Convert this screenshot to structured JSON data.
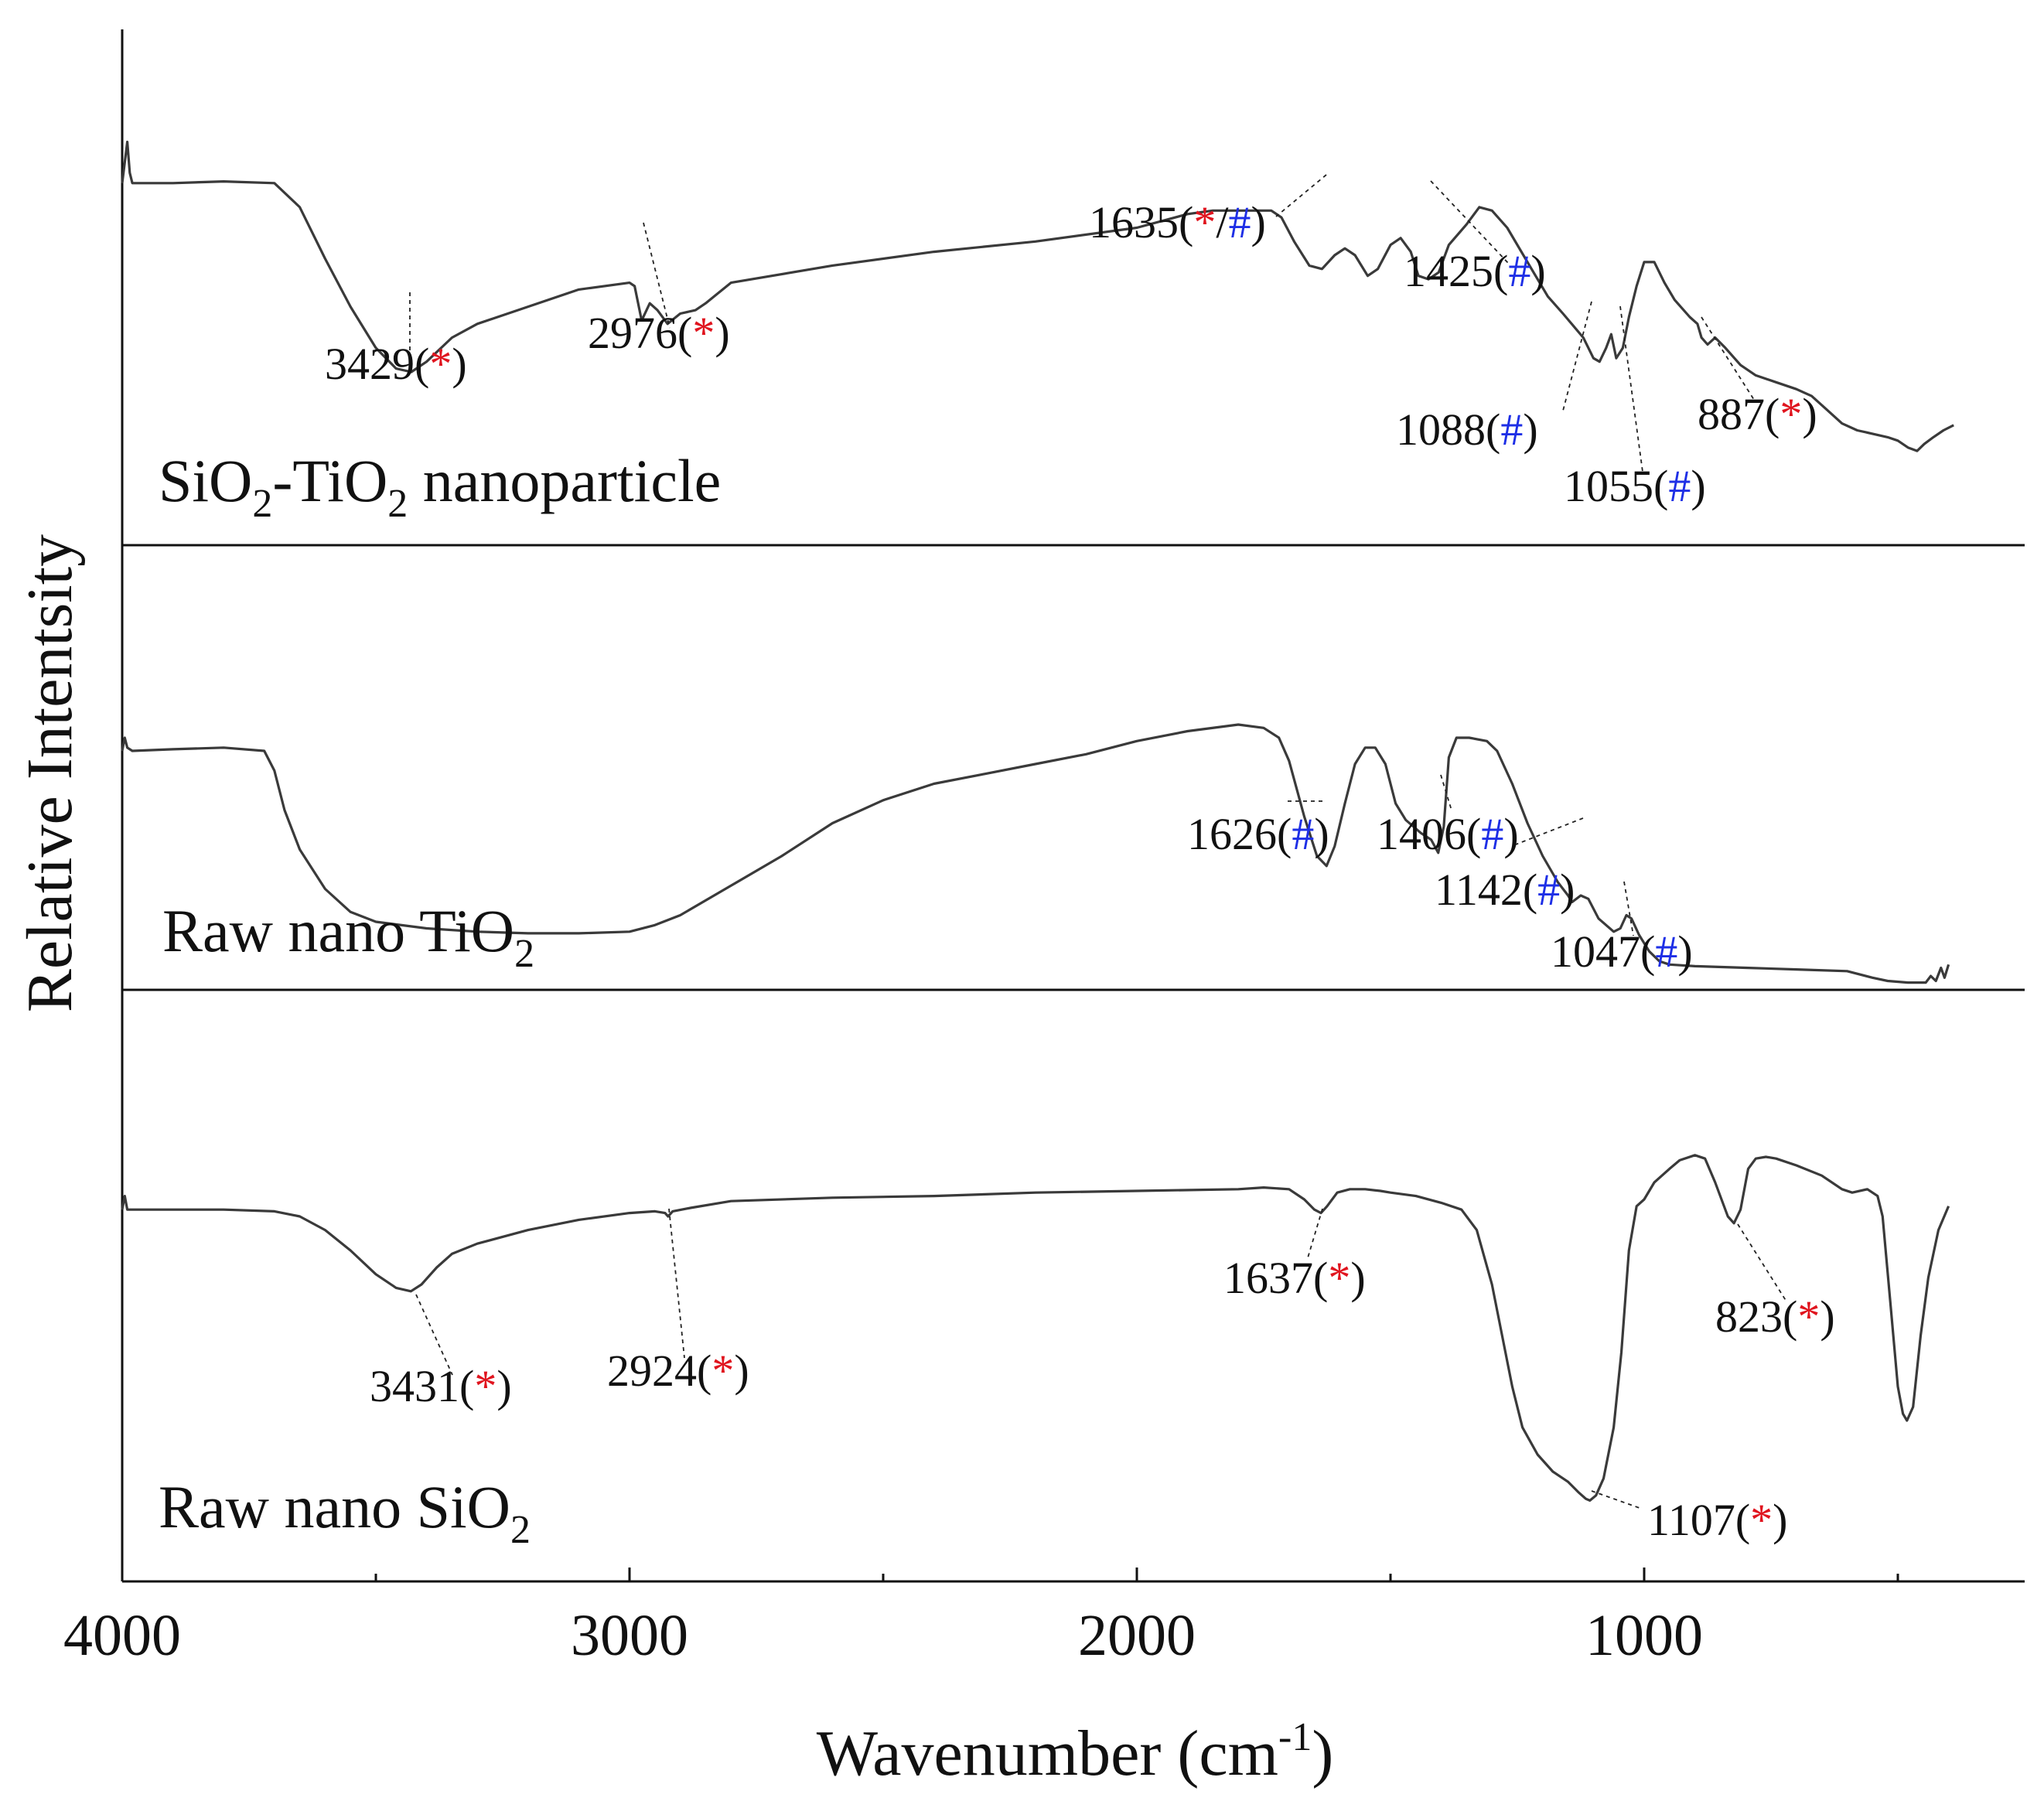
{
  "chart_data": {
    "type": "line",
    "xlabel": "Wavenumber (cm",
    "xlabel_sup": "-1",
    "xlabel_close": ")",
    "ylabel": "Relative Intentsity",
    "x_range": [
      4000,
      250
    ],
    "x_ticks": [
      4000,
      3000,
      2000,
      1000
    ],
    "x_tick_labels": [
      "4000",
      "3000",
      "2000",
      "1000"
    ],
    "x_minor_ticks": [
      3500,
      2500,
      1500,
      500
    ],
    "y_ticks": "none",
    "y_range": [
      0,
      100
    ],
    "series": [
      {
        "name": "SiO2-TiO2 nanoparticle",
        "label_parts": [
          {
            "t": "SiO",
            "style": "normal"
          },
          {
            "t": "2",
            "style": "sub"
          },
          {
            "t": "-TiO",
            "style": "normal"
          },
          {
            "t": "2",
            "style": "sub"
          },
          {
            "t": " nanoparticle",
            "style": "normal"
          }
        ],
        "points": [
          [
            4000,
            80
          ],
          [
            3990,
            92
          ],
          [
            3985,
            83
          ],
          [
            3980,
            80
          ],
          [
            3900,
            80
          ],
          [
            3800,
            80.5
          ],
          [
            3700,
            80
          ],
          [
            3650,
            73
          ],
          [
            3600,
            58
          ],
          [
            3550,
            44
          ],
          [
            3500,
            32
          ],
          [
            3460,
            26
          ],
          [
            3430,
            25
          ],
          [
            3400,
            28
          ],
          [
            3350,
            35
          ],
          [
            3300,
            39
          ],
          [
            3200,
            44
          ],
          [
            3100,
            49
          ],
          [
            3000,
            51
          ],
          [
            2990,
            50
          ],
          [
            2976,
            40
          ],
          [
            2960,
            45
          ],
          [
            2945,
            43
          ],
          [
            2925,
            39
          ],
          [
            2900,
            42
          ],
          [
            2870,
            43
          ],
          [
            2850,
            45
          ],
          [
            2800,
            51
          ],
          [
            2600,
            56
          ],
          [
            2400,
            60
          ],
          [
            2200,
            63
          ],
          [
            2000,
            67
          ],
          [
            1900,
            71
          ],
          [
            1850,
            72
          ],
          [
            1760,
            72
          ],
          [
            1735,
            72
          ],
          [
            1715,
            70
          ],
          [
            1690,
            63
          ],
          [
            1660,
            56
          ],
          [
            1635,
            55
          ],
          [
            1610,
            59
          ],
          [
            1590,
            61
          ],
          [
            1570,
            59
          ],
          [
            1545,
            53
          ],
          [
            1525,
            55
          ],
          [
            1500,
            62
          ],
          [
            1480,
            64
          ],
          [
            1460,
            60
          ],
          [
            1445,
            53
          ],
          [
            1425,
            52
          ],
          [
            1405,
            54
          ],
          [
            1385,
            62
          ],
          [
            1350,
            68
          ],
          [
            1325,
            73
          ],
          [
            1300,
            72
          ],
          [
            1270,
            67
          ],
          [
            1230,
            57
          ],
          [
            1190,
            47
          ],
          [
            1160,
            42
          ],
          [
            1120,
            35
          ],
          [
            1100,
            29
          ],
          [
            1088,
            28
          ],
          [
            1075,
            32
          ],
          [
            1065,
            36
          ],
          [
            1055,
            29
          ],
          [
            1042,
            32
          ],
          [
            1030,
            41
          ],
          [
            1015,
            50
          ],
          [
            1000,
            57
          ],
          [
            980,
            57
          ],
          [
            960,
            51
          ],
          [
            940,
            46
          ],
          [
            910,
            41
          ],
          [
            895,
            39
          ],
          [
            887,
            35
          ],
          [
            875,
            33
          ],
          [
            860,
            35
          ],
          [
            840,
            32
          ],
          [
            810,
            27
          ],
          [
            780,
            24
          ],
          [
            740,
            22
          ],
          [
            700,
            20
          ],
          [
            670,
            18
          ],
          [
            640,
            14
          ],
          [
            610,
            10
          ],
          [
            580,
            8
          ],
          [
            550,
            7
          ],
          [
            520,
            6
          ],
          [
            500,
            5
          ],
          [
            480,
            3
          ],
          [
            462,
            2
          ],
          [
            448,
            4
          ],
          [
            430,
            6
          ],
          [
            410,
            8
          ],
          [
            390,
            9.5
          ]
        ],
        "annotations": [
          {
            "label": "3429",
            "x": 3429,
            "marks": [
              "*"
            ]
          },
          {
            "label": "2976",
            "x": 2976,
            "marks": [
              "*"
            ]
          },
          {
            "label": "1635",
            "x": 1635,
            "marks": [
              "*",
              "#"
            ]
          },
          {
            "label": "1425",
            "x": 1425,
            "marks": [
              "#"
            ]
          },
          {
            "label": "1088",
            "x": 1088,
            "marks": [
              "#"
            ]
          },
          {
            "label": "1055",
            "x": 1055,
            "marks": [
              "#"
            ]
          },
          {
            "label": "887",
            "x": 887,
            "marks": [
              "*"
            ]
          }
        ]
      },
      {
        "name": "Raw nano TiO2",
        "label_parts": [
          {
            "t": "Raw nano TiO",
            "style": "normal"
          },
          {
            "t": "2",
            "style": "sub"
          }
        ],
        "points": [
          [
            4000,
            68
          ],
          [
            3995,
            72
          ],
          [
            3990,
            69
          ],
          [
            3980,
            68
          ],
          [
            3900,
            68.5
          ],
          [
            3800,
            69
          ],
          [
            3720,
            68
          ],
          [
            3700,
            62
          ],
          [
            3680,
            50
          ],
          [
            3650,
            38
          ],
          [
            3600,
            26
          ],
          [
            3550,
            19
          ],
          [
            3500,
            16
          ],
          [
            3400,
            14
          ],
          [
            3300,
            13
          ],
          [
            3200,
            12.5
          ],
          [
            3100,
            12.5
          ],
          [
            3000,
            13
          ],
          [
            2950,
            15
          ],
          [
            2900,
            18
          ],
          [
            2800,
            27
          ],
          [
            2700,
            36
          ],
          [
            2600,
            46
          ],
          [
            2500,
            53
          ],
          [
            2400,
            58
          ],
          [
            2300,
            61
          ],
          [
            2200,
            64
          ],
          [
            2100,
            67
          ],
          [
            2000,
            71
          ],
          [
            1900,
            74
          ],
          [
            1800,
            76
          ],
          [
            1750,
            75
          ],
          [
            1720,
            72
          ],
          [
            1700,
            65
          ],
          [
            1670,
            48
          ],
          [
            1645,
            36
          ],
          [
            1626,
            33
          ],
          [
            1610,
            39
          ],
          [
            1590,
            52
          ],
          [
            1570,
            64
          ],
          [
            1550,
            69
          ],
          [
            1530,
            69
          ],
          [
            1510,
            64
          ],
          [
            1490,
            52
          ],
          [
            1470,
            47
          ],
          [
            1440,
            43
          ],
          [
            1420,
            41
          ],
          [
            1406,
            37
          ],
          [
            1395,
            45
          ],
          [
            1385,
            66
          ],
          [
            1370,
            72
          ],
          [
            1345,
            72
          ],
          [
            1310,
            71
          ],
          [
            1290,
            68
          ],
          [
            1260,
            58
          ],
          [
            1230,
            46
          ],
          [
            1200,
            36
          ],
          [
            1170,
            28
          ],
          [
            1150,
            24
          ],
          [
            1142,
            22
          ],
          [
            1125,
            24
          ],
          [
            1110,
            23
          ],
          [
            1090,
            17
          ],
          [
            1075,
            15
          ],
          [
            1060,
            13
          ],
          [
            1047,
            14
          ],
          [
            1035,
            18
          ],
          [
            1025,
            17
          ],
          [
            1010,
            12
          ],
          [
            990,
            7
          ],
          [
            970,
            4
          ],
          [
            950,
            3
          ],
          [
            900,
            2.5
          ],
          [
            800,
            2
          ],
          [
            700,
            1.5
          ],
          [
            600,
            1
          ],
          [
            550,
            -1
          ],
          [
            520,
            -2
          ],
          [
            480,
            -2.5
          ],
          [
            445,
            -2.5
          ],
          [
            435,
            -0.5
          ],
          [
            425,
            -2
          ],
          [
            415,
            2
          ],
          [
            408,
            -1
          ],
          [
            400,
            3
          ]
        ],
        "annotations": [
          {
            "label": "1626",
            "x": 1626,
            "marks": [
              "#"
            ]
          },
          {
            "label": "1406",
            "x": 1406,
            "marks": [
              "#"
            ]
          },
          {
            "label": "1142",
            "x": 1142,
            "marks": [
              "#"
            ]
          },
          {
            "label": "1047",
            "x": 1047,
            "marks": [
              "#"
            ]
          }
        ]
      },
      {
        "name": "Raw nano SiO2",
        "label_parts": [
          {
            "t": "Raw nano SiO",
            "style": "normal"
          },
          {
            "t": "2",
            "style": "sub"
          }
        ],
        "points": [
          [
            4000,
            82
          ],
          [
            3995,
            86
          ],
          [
            3990,
            82
          ],
          [
            3980,
            82
          ],
          [
            3800,
            82
          ],
          [
            3700,
            81.5
          ],
          [
            3650,
            80
          ],
          [
            3600,
            76
          ],
          [
            3550,
            70
          ],
          [
            3500,
            63
          ],
          [
            3460,
            59
          ],
          [
            3431,
            58
          ],
          [
            3410,
            60
          ],
          [
            3380,
            65
          ],
          [
            3350,
            69
          ],
          [
            3300,
            72
          ],
          [
            3200,
            76
          ],
          [
            3100,
            79
          ],
          [
            3000,
            81
          ],
          [
            2950,
            81.5
          ],
          [
            2930,
            81
          ],
          [
            2924,
            80
          ],
          [
            2915,
            81.5
          ],
          [
            2880,
            82.5
          ],
          [
            2800,
            84.5
          ],
          [
            2600,
            85.5
          ],
          [
            2400,
            86
          ],
          [
            2200,
            87
          ],
          [
            2000,
            87.5
          ],
          [
            1800,
            88
          ],
          [
            1750,
            88.5
          ],
          [
            1700,
            88
          ],
          [
            1670,
            85
          ],
          [
            1650,
            82
          ],
          [
            1637,
            81
          ],
          [
            1625,
            83
          ],
          [
            1605,
            87
          ],
          [
            1580,
            88
          ],
          [
            1550,
            88
          ],
          [
            1520,
            87.5
          ],
          [
            1500,
            87
          ],
          [
            1450,
            86
          ],
          [
            1400,
            84
          ],
          [
            1360,
            82
          ],
          [
            1330,
            76
          ],
          [
            1300,
            60
          ],
          [
            1280,
            45
          ],
          [
            1260,
            30
          ],
          [
            1240,
            18
          ],
          [
            1210,
            10
          ],
          [
            1180,
            5
          ],
          [
            1150,
            2
          ],
          [
            1130,
            -1
          ],
          [
            1115,
            -3
          ],
          [
            1107,
            -3.5
          ],
          [
            1095,
            -2
          ],
          [
            1080,
            3
          ],
          [
            1060,
            18
          ],
          [
            1045,
            40
          ],
          [
            1030,
            70
          ],
          [
            1015,
            83
          ],
          [
            1000,
            85
          ],
          [
            980,
            90
          ],
          [
            950,
            94
          ],
          [
            930,
            96.5
          ],
          [
            900,
            98
          ],
          [
            880,
            97
          ],
          [
            860,
            90
          ],
          [
            835,
            80
          ],
          [
            823,
            78
          ],
          [
            810,
            82
          ],
          [
            795,
            94
          ],
          [
            780,
            97
          ],
          [
            760,
            97.5
          ],
          [
            740,
            97
          ],
          [
            700,
            95
          ],
          [
            650,
            92
          ],
          [
            610,
            88
          ],
          [
            590,
            87
          ],
          [
            560,
            88
          ],
          [
            540,
            86
          ],
          [
            530,
            80
          ],
          [
            515,
            55
          ],
          [
            500,
            30
          ],
          [
            490,
            22
          ],
          [
            482,
            20
          ],
          [
            470,
            24
          ],
          [
            455,
            45
          ],
          [
            440,
            62
          ],
          [
            420,
            76
          ],
          [
            400,
            83
          ]
        ],
        "annotations": [
          {
            "label": "3431",
            "x": 3431,
            "marks": [
              "*"
            ]
          },
          {
            "label": "2924",
            "x": 2924,
            "marks": [
              "*"
            ]
          },
          {
            "label": "1637",
            "x": 1637,
            "marks": [
              "*"
            ]
          },
          {
            "label": "823",
            "x": 823,
            "marks": [
              "*"
            ]
          },
          {
            "label": "1107",
            "x": 1107,
            "marks": [
              "*"
            ]
          }
        ]
      }
    ]
  }
}
